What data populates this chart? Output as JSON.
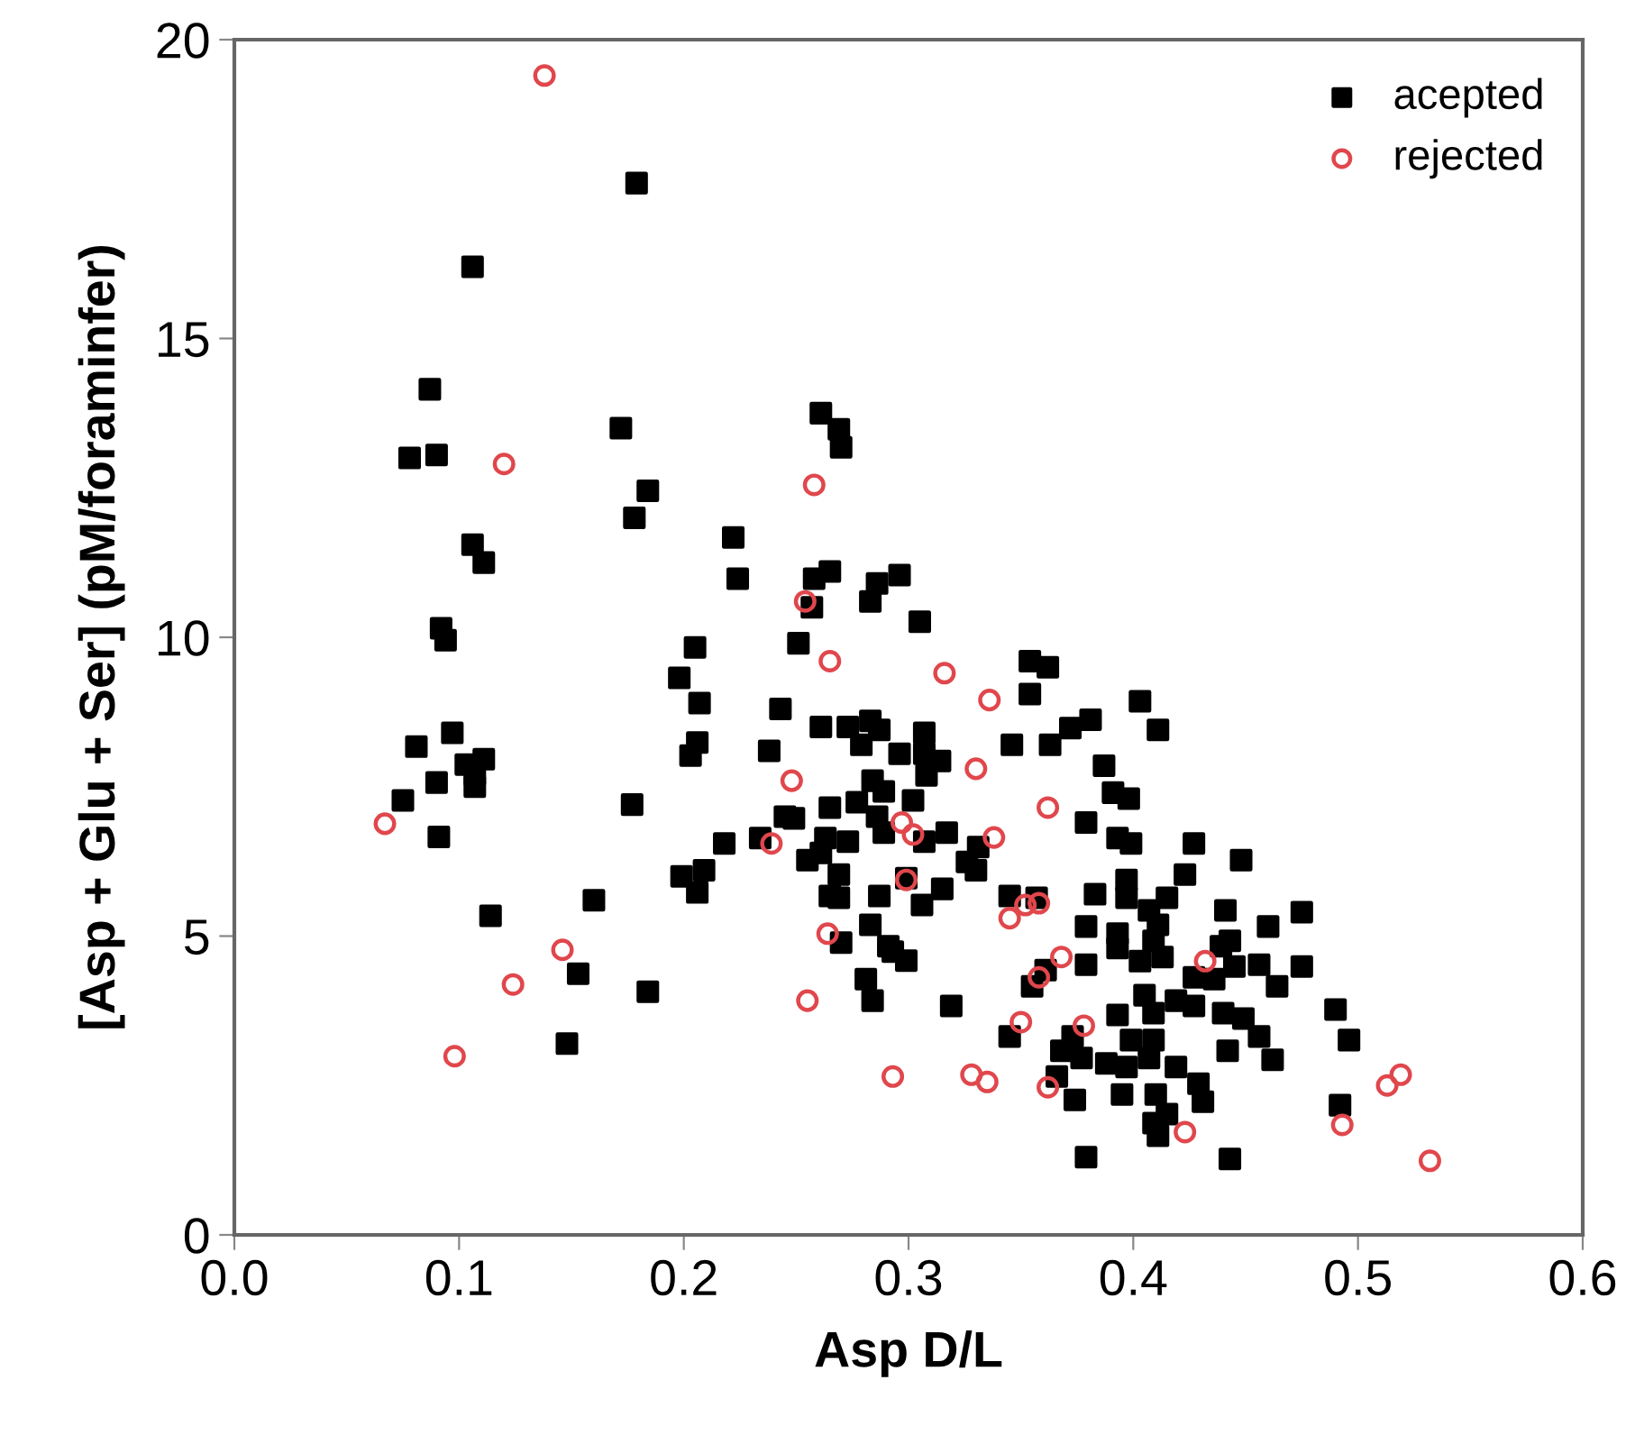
{
  "chart_data": {
    "type": "scatter",
    "xlabel": "Asp D/L",
    "ylabel": "[Asp + Glu + Ser] (pM/foraminfer)",
    "xlim": [
      0.0,
      0.6
    ],
    "ylim": [
      0,
      20
    ],
    "xticks": [
      {
        "value": 0.0,
        "label": "0.0"
      },
      {
        "value": 0.1,
        "label": "0.1"
      },
      {
        "value": 0.2,
        "label": "0.2"
      },
      {
        "value": 0.3,
        "label": "0.3"
      },
      {
        "value": 0.4,
        "label": "0.4"
      },
      {
        "value": 0.5,
        "label": "0.5"
      },
      {
        "value": 0.6,
        "label": "0.6"
      }
    ],
    "yticks": [
      0,
      5,
      10,
      15,
      20
    ],
    "grid": false,
    "legend": "top right",
    "series": [
      {
        "name": "acepted",
        "color": "#000000",
        "marker": "square",
        "x": [
          0.179,
          0.106,
          0.087,
          0.078,
          0.09,
          0.172,
          0.184,
          0.178,
          0.106,
          0.111,
          0.092,
          0.094,
          0.081,
          0.097,
          0.103,
          0.111,
          0.107,
          0.107,
          0.09,
          0.075,
          0.091,
          0.177,
          0.114,
          0.16,
          0.153,
          0.184,
          0.148,
          0.199,
          0.206,
          0.205,
          0.198,
          0.207,
          0.206,
          0.203,
          0.261,
          0.269,
          0.27,
          0.222,
          0.224,
          0.258,
          0.265,
          0.257,
          0.286,
          0.283,
          0.296,
          0.305,
          0.251,
          0.243,
          0.354,
          0.362,
          0.354,
          0.403,
          0.238,
          0.261,
          0.273,
          0.283,
          0.287,
          0.279,
          0.307,
          0.296,
          0.307,
          0.314,
          0.308,
          0.346,
          0.363,
          0.372,
          0.381,
          0.387,
          0.391,
          0.398,
          0.284,
          0.289,
          0.302,
          0.277,
          0.265,
          0.245,
          0.249,
          0.379,
          0.218,
          0.234,
          0.209,
          0.286,
          0.289,
          0.263,
          0.273,
          0.255,
          0.261,
          0.317,
          0.307,
          0.331,
          0.326,
          0.33,
          0.269,
          0.265,
          0.269,
          0.287,
          0.299,
          0.306,
          0.315,
          0.283,
          0.27,
          0.291,
          0.293,
          0.299,
          0.281,
          0.284,
          0.319,
          0.345,
          0.357,
          0.383,
          0.379,
          0.379,
          0.355,
          0.361,
          0.345,
          0.393,
          0.368,
          0.373,
          0.377,
          0.366,
          0.374,
          0.388,
          0.397,
          0.395,
          0.379,
          0.393,
          0.399,
          0.397,
          0.397,
          0.393,
          0.393,
          0.399,
          0.407,
          0.411,
          0.427,
          0.448,
          0.423,
          0.415,
          0.441,
          0.475,
          0.46,
          0.411,
          0.409,
          0.413,
          0.443,
          0.439,
          0.445,
          0.456,
          0.464,
          0.475,
          0.403,
          0.427,
          0.436,
          0.405,
          0.419,
          0.427,
          0.44,
          0.449,
          0.409,
          0.456,
          0.409,
          0.442,
          0.462,
          0.407,
          0.419,
          0.41,
          0.429,
          0.431,
          0.409,
          0.415,
          0.411,
          0.49,
          0.496,
          0.492,
          0.443
        ],
        "values": [
          17.6,
          16.2,
          14.15,
          13.0,
          13.05,
          13.5,
          12.45,
          12.0,
          11.55,
          11.25,
          10.15,
          9.95,
          8.17,
          8.4,
          7.87,
          7.96,
          7.7,
          7.5,
          7.57,
          7.27,
          6.66,
          7.2,
          5.34,
          5.6,
          4.37,
          4.07,
          3.2,
          6.0,
          5.73,
          9.83,
          9.32,
          8.9,
          8.24,
          8.02,
          13.75,
          13.48,
          13.18,
          11.67,
          10.98,
          10.98,
          11.1,
          10.5,
          10.9,
          10.6,
          11.04,
          10.26,
          9.9,
          8.8,
          9.6,
          9.5,
          9.05,
          8.93,
          8.1,
          8.5,
          8.5,
          8.6,
          8.45,
          8.2,
          8.4,
          8.05,
          8.05,
          7.93,
          7.69,
          8.2,
          8.2,
          8.48,
          8.62,
          7.85,
          7.4,
          7.3,
          7.6,
          7.42,
          7.27,
          7.24,
          7.15,
          7.0,
          6.97,
          6.9,
          6.55,
          6.64,
          6.1,
          7.0,
          6.73,
          6.64,
          6.58,
          6.27,
          6.39,
          6.73,
          6.58,
          6.49,
          6.24,
          6.1,
          6.03,
          5.67,
          5.64,
          5.67,
          5.97,
          5.52,
          5.79,
          5.19,
          4.89,
          4.83,
          4.74,
          4.59,
          4.28,
          3.92,
          3.83,
          5.67,
          5.64,
          5.7,
          5.16,
          4.52,
          4.16,
          4.43,
          3.32,
          3.68,
          3.08,
          3.32,
          2.96,
          2.65,
          2.26,
          2.87,
          2.81,
          2.35,
          1.3,
          6.64,
          6.55,
          5.94,
          5.64,
          5.04,
          4.8,
          3.26,
          5.43,
          8.45,
          6.55,
          6.27,
          6.03,
          5.64,
          5.43,
          5.4,
          5.16,
          5.19,
          4.92,
          4.65,
          4.92,
          4.83,
          4.49,
          4.52,
          4.16,
          4.49,
          4.58,
          4.31,
          4.28,
          4.01,
          3.92,
          3.83,
          3.71,
          3.62,
          3.71,
          3.32,
          3.26,
          3.08,
          2.93,
          2.96,
          2.81,
          2.35,
          2.53,
          2.23,
          1.87,
          2.02,
          1.66,
          3.77,
          3.26,
          2.17,
          1.27
        ]
      },
      {
        "name": "rejected",
        "color": "#e0474c",
        "marker": "circle",
        "x": [
          0.138,
          0.12,
          0.258,
          0.254,
          0.265,
          0.316,
          0.336,
          0.33,
          0.362,
          0.248,
          0.067,
          0.146,
          0.124,
          0.098,
          0.239,
          0.297,
          0.302,
          0.338,
          0.299,
          0.264,
          0.255,
          0.345,
          0.352,
          0.358,
          0.368,
          0.358,
          0.35,
          0.378,
          0.293,
          0.328,
          0.335,
          0.362,
          0.432,
          0.423,
          0.493,
          0.513,
          0.519,
          0.532
        ],
        "values": [
          19.4,
          12.9,
          12.55,
          10.6,
          9.6,
          9.4,
          8.95,
          7.8,
          7.15,
          7.6,
          6.88,
          4.77,
          4.19,
          2.99,
          6.55,
          6.9,
          6.7,
          6.65,
          5.94,
          5.04,
          3.92,
          5.3,
          5.52,
          5.55,
          4.65,
          4.31,
          3.56,
          3.5,
          2.65,
          2.68,
          2.56,
          2.47,
          4.58,
          1.72,
          1.84,
          2.5,
          2.68,
          1.24
        ]
      }
    ]
  }
}
